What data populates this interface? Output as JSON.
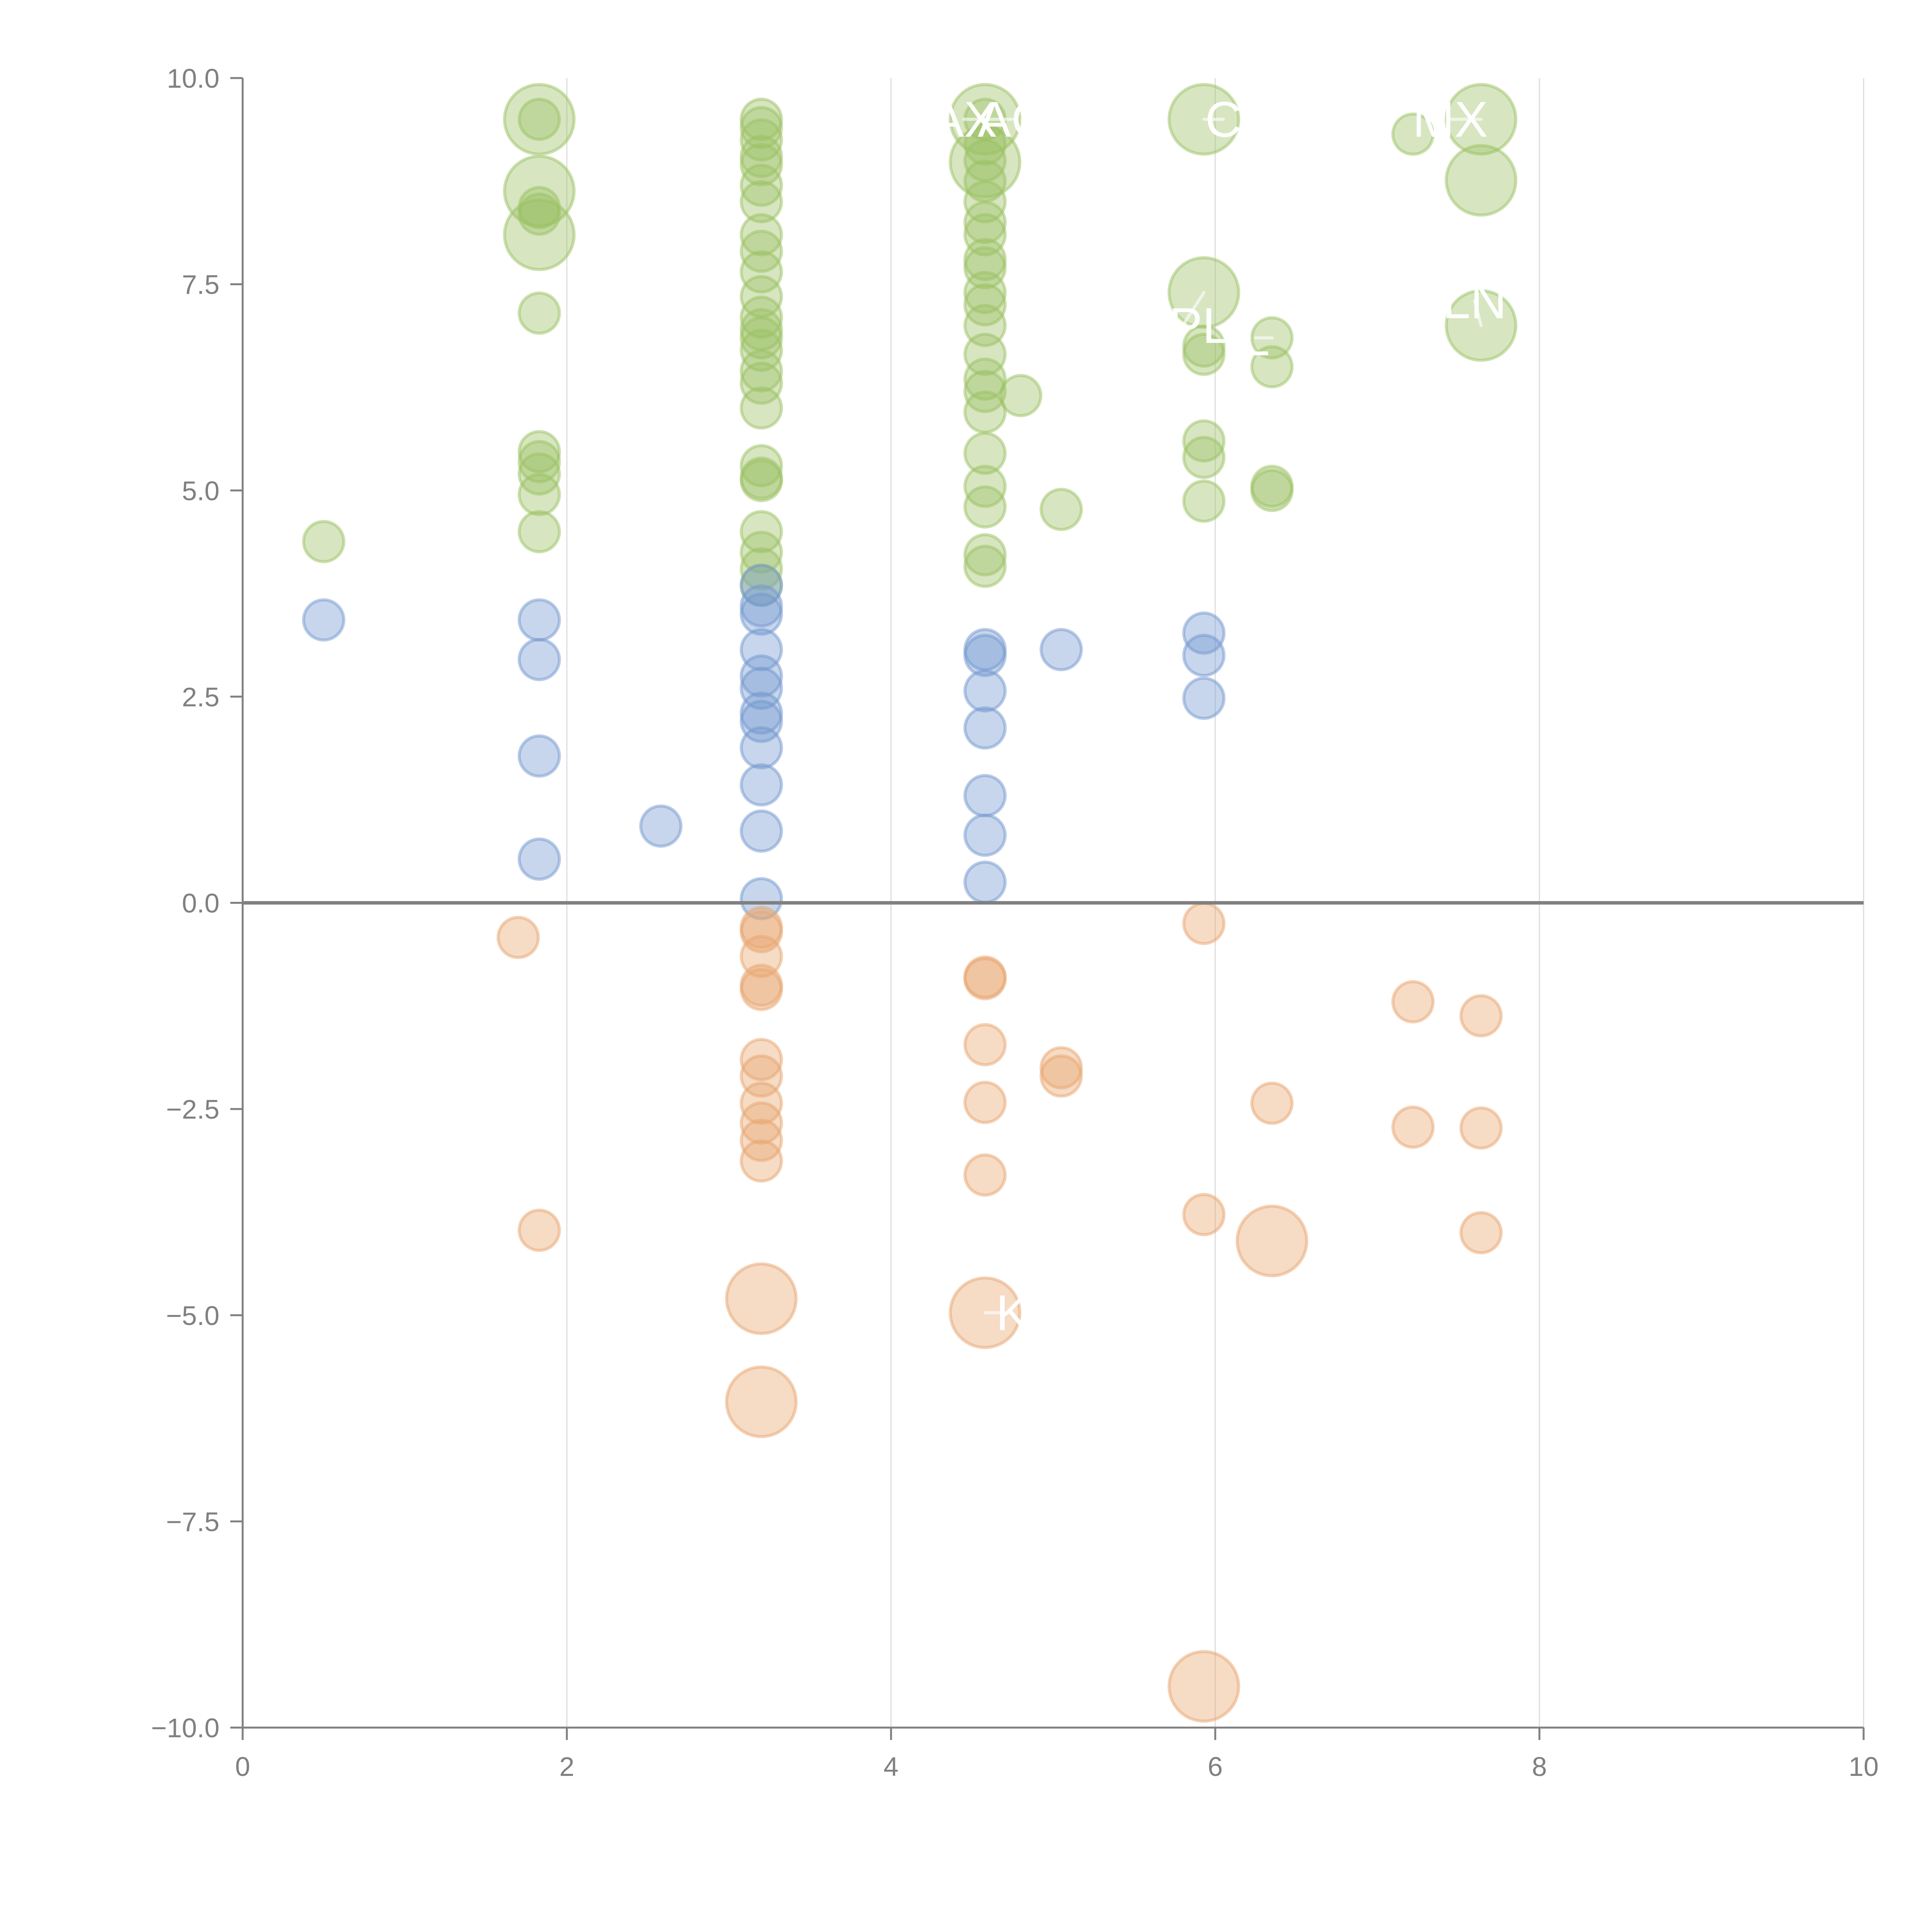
{
  "chart_data": {
    "type": "scatter",
    "title": "",
    "xlabel": "",
    "ylabel": "",
    "xlim": [
      0,
      10
    ],
    "ylim": [
      -10,
      10
    ],
    "x_ticks": [
      "0",
      "2",
      "4",
      "6",
      "8",
      "10"
    ],
    "x_tick_values": [
      0,
      2,
      4,
      6,
      8,
      10
    ],
    "y_ticks": [
      "10.0",
      "7.5",
      "5.0",
      "2.5",
      "0.0",
      "−2.5",
      "−5.0",
      "−7.5",
      "−10.0"
    ],
    "y_tick_values": [
      10,
      7.5,
      5,
      2.5,
      0,
      -2.5,
      -5,
      -7.5,
      -10
    ],
    "grid": "vertical",
    "zero_line": true,
    "legend": "none",
    "colors": {
      "green": "#9bc163",
      "blue": "#7398d0",
      "orange": "#e8a66f",
      "axis": "#808080",
      "grid": "#dddddd"
    },
    "series": [
      {
        "name": "green",
        "points": [
          [
            0.5,
            4.38,
            1
          ],
          [
            1.83,
            9.5,
            3
          ],
          [
            1.83,
            9.5,
            1
          ],
          [
            1.83,
            8.63,
            3
          ],
          [
            1.83,
            8.43,
            1
          ],
          [
            1.83,
            8.35,
            1
          ],
          [
            1.83,
            8.1,
            3
          ],
          [
            1.83,
            7.15,
            1
          ],
          [
            1.83,
            5.47,
            1
          ],
          [
            1.83,
            5.35,
            1
          ],
          [
            1.83,
            5.2,
            1
          ],
          [
            1.83,
            4.95,
            1
          ],
          [
            1.83,
            4.5,
            1
          ],
          [
            3.2,
            9.5,
            1
          ],
          [
            3.2,
            9.4,
            1
          ],
          [
            3.2,
            9.25,
            1
          ],
          [
            3.2,
            9.05,
            1
          ],
          [
            3.2,
            8.95,
            1
          ],
          [
            3.2,
            8.7,
            1
          ],
          [
            3.2,
            8.5,
            1
          ],
          [
            3.2,
            8.1,
            1
          ],
          [
            3.2,
            7.9,
            1
          ],
          [
            3.2,
            7.65,
            1
          ],
          [
            3.2,
            7.35,
            1
          ],
          [
            3.2,
            7.1,
            1
          ],
          [
            3.2,
            6.95,
            1
          ],
          [
            3.2,
            6.85,
            1
          ],
          [
            3.2,
            6.7,
            1
          ],
          [
            3.2,
            6.45,
            1
          ],
          [
            3.2,
            6.3,
            1
          ],
          [
            3.2,
            6.0,
            1
          ],
          [
            3.2,
            5.3,
            1
          ],
          [
            3.2,
            5.15,
            1
          ],
          [
            3.2,
            5.12,
            1
          ],
          [
            3.2,
            4.5,
            1
          ],
          [
            3.2,
            4.25,
            1
          ],
          [
            3.2,
            4.05,
            1
          ],
          [
            3.2,
            3.85,
            1
          ],
          [
            4.58,
            9.5,
            3
          ],
          [
            4.58,
            9.5,
            1
          ],
          [
            4.58,
            8.98,
            3
          ],
          [
            4.58,
            9.2,
            1
          ],
          [
            4.58,
            9.0,
            1
          ],
          [
            4.58,
            8.75,
            1
          ],
          [
            4.58,
            8.5,
            1
          ],
          [
            4.58,
            8.25,
            1
          ],
          [
            4.58,
            8.1,
            1
          ],
          [
            4.58,
            7.8,
            1
          ],
          [
            4.58,
            7.7,
            1
          ],
          [
            4.58,
            7.4,
            1
          ],
          [
            4.58,
            7.25,
            1
          ],
          [
            4.58,
            7.0,
            1
          ],
          [
            4.58,
            6.65,
            1
          ],
          [
            4.58,
            6.35,
            1
          ],
          [
            4.58,
            6.2,
            1
          ],
          [
            4.58,
            5.95,
            1
          ],
          [
            4.58,
            5.45,
            1
          ],
          [
            4.58,
            5.05,
            1
          ],
          [
            4.58,
            4.8,
            1
          ],
          [
            4.58,
            4.22,
            1
          ],
          [
            4.58,
            4.08,
            1
          ],
          [
            4.8,
            6.15,
            1
          ],
          [
            5.05,
            4.77,
            1
          ],
          [
            5.93,
            9.5,
            3
          ],
          [
            5.93,
            7.4,
            3
          ],
          [
            5.93,
            6.75,
            1
          ],
          [
            5.93,
            6.65,
            1
          ],
          [
            5.93,
            5.6,
            1
          ],
          [
            5.93,
            5.4,
            1
          ],
          [
            5.93,
            4.87,
            1
          ],
          [
            6.35,
            6.85,
            1
          ],
          [
            6.35,
            6.5,
            1
          ],
          [
            6.35,
            5.05,
            1
          ],
          [
            6.35,
            5.0,
            1
          ],
          [
            7.22,
            9.32,
            1
          ],
          [
            7.64,
            9.5,
            3
          ],
          [
            7.64,
            8.76,
            3
          ],
          [
            7.64,
            7.0,
            3
          ]
        ]
      },
      {
        "name": "blue",
        "points": [
          [
            0.5,
            3.43,
            1
          ],
          [
            1.83,
            3.43,
            1
          ],
          [
            1.83,
            2.95,
            1
          ],
          [
            1.83,
            1.78,
            1
          ],
          [
            1.83,
            0.53,
            1
          ],
          [
            2.58,
            0.93,
            1
          ],
          [
            3.2,
            3.85,
            1
          ],
          [
            3.2,
            3.6,
            1
          ],
          [
            3.2,
            3.5,
            1
          ],
          [
            3.2,
            3.07,
            1
          ],
          [
            3.2,
            2.75,
            1
          ],
          [
            3.2,
            2.6,
            1
          ],
          [
            3.2,
            2.3,
            1
          ],
          [
            3.2,
            2.2,
            1
          ],
          [
            3.2,
            1.88,
            1
          ],
          [
            3.2,
            1.43,
            1
          ],
          [
            3.2,
            0.87,
            1
          ],
          [
            3.2,
            0.05,
            1
          ],
          [
            4.58,
            3.07,
            1
          ],
          [
            4.58,
            3.0,
            1
          ],
          [
            4.58,
            2.57,
            1
          ],
          [
            4.58,
            2.12,
            1
          ],
          [
            4.58,
            1.3,
            1
          ],
          [
            4.58,
            0.82,
            1
          ],
          [
            4.58,
            0.25,
            1
          ],
          [
            5.05,
            3.07,
            1
          ],
          [
            5.93,
            3.27,
            1
          ],
          [
            5.93,
            3.0,
            1
          ],
          [
            5.93,
            2.48,
            1
          ]
        ]
      },
      {
        "name": "orange",
        "points": [
          [
            1.7,
            -0.42,
            1
          ],
          [
            1.83,
            -3.97,
            1
          ],
          [
            3.2,
            -0.3,
            1
          ],
          [
            3.2,
            -0.35,
            1
          ],
          [
            3.2,
            -0.65,
            1
          ],
          [
            3.2,
            -1.0,
            1
          ],
          [
            3.2,
            -1.05,
            1
          ],
          [
            3.2,
            -1.9,
            1
          ],
          [
            3.2,
            -2.1,
            1
          ],
          [
            3.2,
            -2.43,
            1
          ],
          [
            3.2,
            -2.67,
            1
          ],
          [
            3.2,
            -2.88,
            1
          ],
          [
            3.2,
            -3.13,
            1
          ],
          [
            3.2,
            -4.8,
            3
          ],
          [
            3.2,
            -6.05,
            3
          ],
          [
            4.58,
            -0.92,
            1
          ],
          [
            4.58,
            -0.9,
            1
          ],
          [
            4.58,
            -1.72,
            1
          ],
          [
            4.58,
            -2.42,
            1
          ],
          [
            4.58,
            -3.3,
            1
          ],
          [
            4.58,
            -4.97,
            3
          ],
          [
            5.05,
            -2.0,
            1
          ],
          [
            5.05,
            -2.1,
            1
          ],
          [
            5.93,
            -0.25,
            1
          ],
          [
            5.93,
            -3.78,
            1
          ],
          [
            5.93,
            -9.5,
            3
          ],
          [
            6.35,
            -2.43,
            1
          ],
          [
            6.35,
            -4.1,
            3
          ],
          [
            7.22,
            -1.2,
            1
          ],
          [
            7.22,
            -2.72,
            1
          ],
          [
            7.64,
            -1.37,
            1
          ],
          [
            7.64,
            -2.73,
            1
          ],
          [
            7.64,
            -4.0,
            1
          ]
        ]
      }
    ],
    "annotations": [
      {
        "text": "AX",
        "x": 4.58,
        "y": 9.5,
        "tx": 4.45,
        "ty": 9.5
      },
      {
        "text": "AC",
        "x": 4.58,
        "y": 9.5,
        "tx": 4.75,
        "ty": 9.5
      },
      {
        "text": "C",
        "x": 5.93,
        "y": 9.5,
        "tx": 6.05,
        "ty": 9.5
      },
      {
        "text": "MX",
        "x": 7.64,
        "y": 9.5,
        "tx": 7.45,
        "ty": 9.5
      },
      {
        "text": "SPL",
        "x": 5.93,
        "y": 7.4,
        "tx": 5.8,
        "ty": 7.0
      },
      {
        "text": "L",
        "x": 6.35,
        "y": 6.85,
        "tx": 6.25,
        "ty": 6.85
      },
      {
        "text": "LN",
        "x": 7.64,
        "y": 7.0,
        "tx": 7.6,
        "ty": 7.3
      },
      {
        "text": "K",
        "x": 4.58,
        "y": -4.97,
        "tx": 4.75,
        "ty": -4.97
      }
    ]
  }
}
